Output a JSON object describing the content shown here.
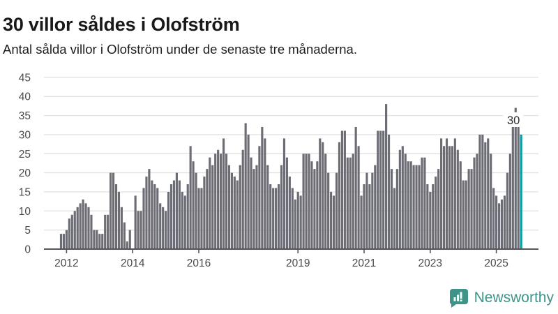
{
  "header": {
    "title": "30 villor såldes i Olofström",
    "subtitle": "Antal sålda villor i Olofström under de senaste tre månaderna."
  },
  "chart_data": {
    "type": "bar",
    "title": "30 villor såldes i Olofström",
    "subtitle": "Antal sålda villor i Olofström under de senaste tre månaderna.",
    "description": "Monthly bar series from Nov 2011 to Oct 2025, rolling three-month count of houses sold; last bar highlighted in teal with data label 30",
    "start_month": "2011-11",
    "values": [
      4,
      4,
      5,
      8,
      9,
      10,
      11,
      12,
      13,
      12,
      11,
      9,
      5,
      5,
      4,
      4,
      9,
      9,
      20,
      20,
      17,
      15,
      11,
      7,
      2,
      5,
      0,
      14,
      10,
      10,
      16,
      19,
      21,
      18,
      17,
      16,
      12,
      11,
      10,
      15,
      17,
      18,
      20,
      18,
      15,
      14,
      17,
      27,
      23,
      20,
      16,
      16,
      19,
      21,
      24,
      22,
      25,
      26,
      25,
      29,
      25,
      22,
      20,
      19,
      18,
      22,
      26,
      33,
      30,
      24,
      21,
      22,
      27,
      32,
      29,
      22,
      17,
      16,
      16,
      17,
      22,
      29,
      24,
      19,
      16,
      13,
      15,
      14,
      25,
      25,
      25,
      23,
      21,
      23,
      29,
      28,
      25,
      20,
      15,
      14,
      20,
      28,
      31,
      31,
      24,
      24,
      25,
      32,
      27,
      14,
      17,
      20,
      17,
      20,
      22,
      31,
      31,
      31,
      38,
      30,
      21,
      16,
      21,
      26,
      27,
      25,
      23,
      23,
      22,
      22,
      22,
      24,
      24,
      17,
      15,
      17,
      19,
      21,
      29,
      27,
      29,
      27,
      27,
      29,
      26,
      23,
      18,
      18,
      21,
      21,
      24,
      25,
      30,
      30,
      28,
      29,
      25,
      16,
      14,
      12,
      13,
      14,
      20,
      25,
      34,
      37,
      32,
      30
    ],
    "highlight_index": 167,
    "annotation": {
      "text": "30"
    },
    "ylim": [
      0,
      45
    ],
    "y_ticks": [
      0,
      5,
      10,
      15,
      20,
      25,
      30,
      35,
      40,
      45
    ],
    "x_ticks": [
      {
        "label": "2012",
        "month_index": 2
      },
      {
        "label": "2014",
        "month_index": 26
      },
      {
        "label": "2016",
        "month_index": 50
      },
      {
        "label": "2019",
        "month_index": 86
      },
      {
        "label": "2021",
        "month_index": 110
      },
      {
        "label": "2023",
        "month_index": 134
      },
      {
        "label": "2025",
        "month_index": 158
      }
    ],
    "grid": true,
    "legend": "none",
    "colors": {
      "bar": "#6c6c74",
      "highlight": "#009fa3",
      "grid": "#e3e3e3",
      "axis": "#55555b",
      "tick_label": "#4a4a4a",
      "annotation_text": "#2e2e33",
      "brand": "#3e9489"
    }
  },
  "footer": {
    "brand": "Newsworthy"
  }
}
